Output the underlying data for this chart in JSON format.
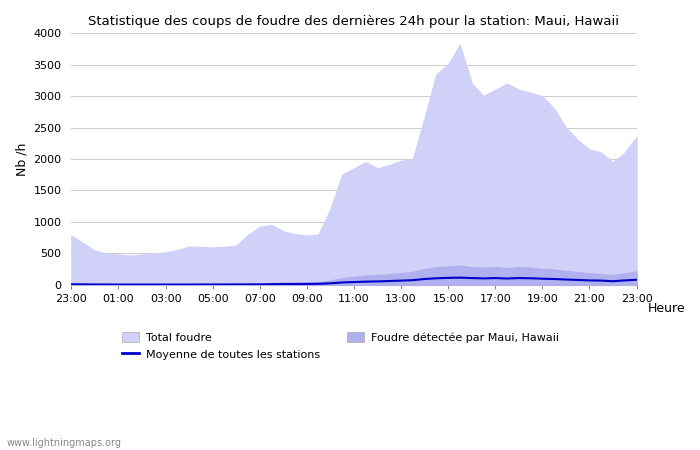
{
  "title": "Statistique des coups de foudre des dernières 24h pour la station: Maui, Hawaii",
  "ylabel": "Nb /h",
  "xlabel": "Heure",
  "watermark": "www.lightningmaps.org",
  "ylim": [
    0,
    4000
  ],
  "yticks": [
    0,
    500,
    1000,
    1500,
    2000,
    2500,
    3000,
    3500,
    4000
  ],
  "x_labels": [
    "23:00",
    "01:00",
    "03:00",
    "05:00",
    "07:00",
    "09:00",
    "11:00",
    "13:00",
    "15:00",
    "17:00",
    "19:00",
    "21:00",
    "23:00"
  ],
  "legend_labels": [
    "Total foudre",
    "Moyenne de toutes les stations",
    "Foudre détectée par Maui, Hawaii"
  ],
  "total_foudre_color": "#d0d0f8",
  "maui_foudre_color": "#b0b0ee",
  "moyenne_color": "#0000cc",
  "background_color": "#ffffff",
  "grid_color": "#cccccc",
  "total_foudre": [
    780,
    660,
    540,
    490,
    480,
    460,
    480,
    500,
    510,
    550,
    605,
    600,
    590,
    600,
    620,
    790,
    920,
    950,
    850,
    800,
    780,
    800,
    1200,
    1750,
    1850,
    1950,
    1850,
    1900,
    1970,
    2000,
    2650,
    3350,
    3500,
    3820,
    3200,
    3000,
    3100,
    3200,
    3100,
    3050,
    3000,
    2800,
    2500,
    2300,
    2150,
    2100,
    1950,
    2100,
    2350
  ],
  "maui_foudre": [
    30,
    20,
    12,
    8,
    6,
    5,
    5,
    5,
    5,
    5,
    5,
    7,
    8,
    10,
    12,
    15,
    18,
    25,
    30,
    32,
    34,
    40,
    65,
    105,
    125,
    145,
    155,
    165,
    182,
    202,
    248,
    278,
    288,
    302,
    280,
    268,
    280,
    262,
    280,
    270,
    250,
    240,
    220,
    200,
    180,
    170,
    150,
    182,
    210
  ],
  "moyenne": [
    5,
    4,
    3,
    3,
    2,
    2,
    2,
    2,
    2,
    2,
    2,
    3,
    3,
    3,
    4,
    4,
    5,
    8,
    10,
    11,
    12,
    14,
    22,
    35,
    42,
    48,
    52,
    58,
    65,
    72,
    90,
    102,
    108,
    112,
    105,
    100,
    105,
    98,
    105,
    102,
    95,
    90,
    82,
    75,
    68,
    65,
    55,
    68,
    78
  ]
}
